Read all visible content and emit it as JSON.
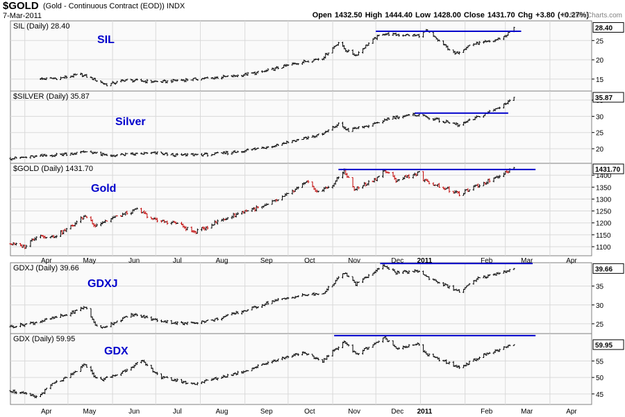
{
  "header": {
    "symbol": "$GOLD",
    "description": "(Gold - Continuous Contract (EOD))  INDX",
    "date": "7-Mar-2011",
    "ohlc": "Open 1432.50  High 1444.40  Low 1428.00  Close 1431.70  Chg +3.80 (+0.27%)",
    "open": 1432.5,
    "high": 1444.4,
    "low": 1428.0,
    "close": 1431.7,
    "change": 3.8,
    "change_pct": 0.27,
    "watermark": "© StockCharts.com"
  },
  "colors": {
    "price_bar": "#000000",
    "price_bar_down": "#c00000",
    "trendline": "#0000cc",
    "panel_label": "#0000cc",
    "grid": "#d9d9d9",
    "panel_bg": "#fafafa",
    "border": "#808080"
  },
  "x_axis": {
    "ticks": [
      {
        "label": "Apr",
        "date": "2010-04-01"
      },
      {
        "label": "May",
        "date": "2010-05-01"
      },
      {
        "label": "Jun",
        "date": "2010-06-01"
      },
      {
        "label": "Jul",
        "date": "2010-07-01"
      },
      {
        "label": "Aug",
        "date": "2010-08-01"
      },
      {
        "label": "Sep",
        "date": "2010-09-01"
      },
      {
        "label": "Oct",
        "date": "2010-10-01"
      },
      {
        "label": "Nov",
        "date": "2010-11-01"
      },
      {
        "label": "Dec",
        "date": "2010-12-01"
      },
      {
        "label": "2011",
        "date": "2011-01-01",
        "bold": true
      },
      {
        "label": "Feb",
        "date": "2011-02-01"
      },
      {
        "label": "Mar",
        "date": "2011-03-01"
      },
      {
        "label": "Apr",
        "date": "2011-04-01"
      }
    ]
  },
  "chart_data": [
    {
      "type": "line",
      "id": "sil",
      "legend": "SIL (Daily) 28.40",
      "label": "SIL",
      "last": "28.40",
      "x_range": [
        "2010-03-22",
        "2011-04-30"
      ],
      "ylim": [
        11.9,
        30.1
      ],
      "yticks": [
        15,
        20,
        25
      ],
      "series": [
        {
          "x": [
            "2010-04-10",
            "2010-04-25",
            "2010-05-10",
            "2010-05-20",
            "2010-05-28",
            "2010-06-10",
            "2010-06-20",
            "2010-07-05",
            "2010-07-20",
            "2010-08-10",
            "2010-08-25",
            "2010-09-15",
            "2010-10-05",
            "2010-10-25",
            "2010-11-05",
            "2010-11-10",
            "2010-11-17",
            "2010-11-25",
            "2010-12-05",
            "2010-12-15",
            "2010-12-31",
            "2011-01-05",
            "2011-01-15",
            "2011-01-25",
            "2011-02-05",
            "2011-02-20",
            "2011-03-01",
            "2011-03-07"
          ],
          "y": [
            15,
            15.2,
            16.2,
            14.8,
            13.5,
            14.8,
            14.5,
            14.3,
            14.8,
            15.3,
            15.8,
            17,
            19,
            20.5,
            24.5,
            22.5,
            21.2,
            24,
            26.8,
            26.5,
            26.3,
            27.5,
            24.5,
            21.5,
            24,
            24.8,
            26.2,
            28.4
          ]
        }
      ],
      "trendlines": [
        {
          "x": [
            "2010-12-01",
            "2011-03-12"
          ],
          "y": [
            27.4,
            27.4
          ]
        }
      ]
    },
    {
      "type": "line",
      "id": "silver",
      "legend": "$SILVER (Daily) 35.87",
      "label": "Silver",
      "last": "35.87",
      "x_range": [
        "2010-03-22",
        "2011-04-30"
      ],
      "ylim": [
        15.5,
        37.8
      ],
      "yticks": [
        20,
        25,
        30,
        35
      ],
      "series": [
        {
          "x": [
            "2010-03-22",
            "2010-04-15",
            "2010-05-05",
            "2010-05-15",
            "2010-05-28",
            "2010-06-15",
            "2010-07-01",
            "2010-07-15",
            "2010-08-10",
            "2010-08-25",
            "2010-09-15",
            "2010-10-05",
            "2010-10-25",
            "2010-11-05",
            "2010-11-12",
            "2010-11-17",
            "2010-11-30",
            "2010-12-10",
            "2010-12-31",
            "2011-01-05",
            "2011-01-15",
            "2011-01-28",
            "2011-02-10",
            "2011-02-25",
            "2011-03-07"
          ],
          "y": [
            17,
            17.8,
            18.6,
            19.2,
            17.8,
            18.3,
            18.7,
            18,
            18.3,
            19,
            20.4,
            22.5,
            24.5,
            27.6,
            25.6,
            26.3,
            27.5,
            29.5,
            30.6,
            29.8,
            28.6,
            27.3,
            29.8,
            32.8,
            35.87
          ]
        }
      ],
      "trendlines": [
        {
          "x": [
            "2010-12-28",
            "2011-03-03"
          ],
          "y": [
            31,
            31
          ]
        }
      ]
    },
    {
      "type": "line",
      "id": "gold",
      "legend": "$GOLD (Daily) 1431.70",
      "label": "Gold",
      "last": "1431.70",
      "x_range": [
        "2010-03-22",
        "2011-04-30"
      ],
      "ylim": [
        1062,
        1450
      ],
      "yticks": [
        1100,
        1150,
        1200,
        1250,
        1300,
        1350,
        1400
      ],
      "series": [
        {
          "x": [
            "2010-03-22",
            "2010-04-01",
            "2010-04-10",
            "2010-04-20",
            "2010-05-01",
            "2010-05-13",
            "2010-05-20",
            "2010-06-01",
            "2010-06-18",
            "2010-07-01",
            "2010-07-15",
            "2010-07-28",
            "2010-08-15",
            "2010-09-01",
            "2010-09-15",
            "2010-10-01",
            "2010-10-14",
            "2010-10-22",
            "2010-11-01",
            "2010-11-09",
            "2010-11-16",
            "2010-12-01",
            "2010-12-07",
            "2010-12-15",
            "2010-12-31",
            "2011-01-04",
            "2011-01-12",
            "2011-01-28",
            "2011-02-15",
            "2011-03-07"
          ],
          "y": [
            1112,
            1100,
            1150,
            1140,
            1175,
            1230,
            1190,
            1220,
            1255,
            1210,
            1200,
            1160,
            1210,
            1250,
            1270,
            1320,
            1370,
            1330,
            1360,
            1420,
            1340,
            1385,
            1420,
            1380,
            1410,
            1375,
            1360,
            1320,
            1370,
            1431.7
          ]
        }
      ],
      "trendlines": [
        {
          "x": [
            "2010-11-05",
            "2011-03-22"
          ],
          "y": [
            1424,
            1424
          ]
        }
      ]
    },
    {
      "type": "line",
      "id": "gdxj",
      "legend": "GDXJ (Daily) 39.66",
      "label": "GDXJ",
      "last": "39.66",
      "x_range": [
        "2010-03-22",
        "2011-04-30"
      ],
      "ylim": [
        22.4,
        41.2
      ],
      "yticks": [
        25,
        30,
        35
      ],
      "series": [
        {
          "x": [
            "2010-03-22",
            "2010-04-10",
            "2010-05-01",
            "2010-05-13",
            "2010-05-22",
            "2010-06-15",
            "2010-07-01",
            "2010-07-20",
            "2010-08-10",
            "2010-09-01",
            "2010-09-20",
            "2010-10-10",
            "2010-10-25",
            "2010-11-09",
            "2010-11-17",
            "2010-12-07",
            "2010-12-15",
            "2010-12-31",
            "2011-01-05",
            "2011-01-28",
            "2011-02-10",
            "2011-02-25",
            "2011-03-07"
          ],
          "y": [
            24.2,
            25.5,
            27.5,
            29.5,
            23.5,
            27.5,
            26,
            25,
            26,
            28.5,
            31,
            32.5,
            33,
            38.5,
            35.5,
            40.5,
            38.5,
            39,
            37.5,
            33.5,
            37,
            38.5,
            39.66
          ]
        }
      ],
      "trendlines": [
        {
          "x": [
            "2010-12-04",
            "2011-03-20"
          ],
          "y": [
            41,
            41
          ]
        }
      ]
    },
    {
      "type": "line",
      "id": "gdx",
      "legend": "GDX (Daily) 59.95",
      "label": "GDX",
      "last": "59.95",
      "x_range": [
        "2010-03-22",
        "2011-04-30"
      ],
      "ylim": [
        41.8,
        63.3
      ],
      "yticks": [
        45,
        50,
        55
      ],
      "series": [
        {
          "x": [
            "2010-03-22",
            "2010-04-10",
            "2010-04-20",
            "2010-05-01",
            "2010-05-13",
            "2010-05-22",
            "2010-06-05",
            "2010-06-21",
            "2010-07-05",
            "2010-07-27",
            "2010-08-15",
            "2010-09-01",
            "2010-09-20",
            "2010-10-10",
            "2010-10-25",
            "2010-11-09",
            "2010-11-17",
            "2010-12-07",
            "2010-12-15",
            "2010-12-31",
            "2011-01-05",
            "2011-01-28",
            "2011-02-15",
            "2011-03-07"
          ],
          "y": [
            46,
            44,
            48,
            50,
            54,
            49,
            51,
            55,
            50,
            48,
            50,
            52,
            55,
            57.5,
            55,
            61,
            57,
            62,
            59,
            60,
            57,
            53,
            57,
            59.95
          ]
        }
      ],
      "trendlines": [
        {
          "x": [
            "2010-11-02",
            "2011-03-22"
          ],
          "y": [
            62.7,
            62.7
          ]
        }
      ]
    }
  ]
}
